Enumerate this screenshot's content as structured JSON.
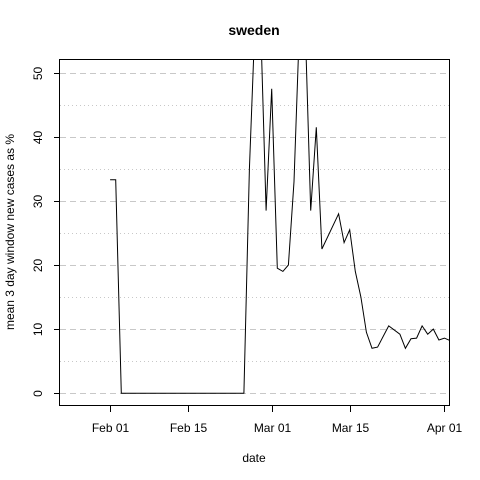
{
  "chart_data": {
    "type": "line",
    "title": "sweden",
    "xlabel": "date",
    "ylabel": "mean  3  day window new cases as %",
    "x_ticks": [
      "2020-02-01",
      "2020-02-15",
      "2020-03-01",
      "2020-03-15",
      "2020-04-01"
    ],
    "x_tick_labels": [
      "Feb 01",
      "Feb 15",
      "Mar 01",
      "Mar 15",
      "Apr 01"
    ],
    "y_ticks": [
      0,
      10,
      20,
      30,
      40,
      50
    ],
    "y_tick_labels": [
      "0",
      "10",
      "20",
      "30",
      "40",
      "50"
    ],
    "xlim": [
      "2020-01-23",
      "2020-04-02"
    ],
    "ylim": [
      -2,
      52
    ],
    "grid": true,
    "series": [
      {
        "points": [
          [
            "2020-02-01",
            33.3
          ],
          [
            "2020-02-02",
            33.3
          ],
          [
            "2020-02-03",
            0
          ],
          [
            "2020-02-25",
            0
          ],
          [
            "2020-02-26",
            35
          ],
          [
            "2020-02-27",
            58
          ],
          [
            "2020-02-28",
            58
          ],
          [
            "2020-02-29",
            28.5
          ],
          [
            "2020-03-01",
            47.5
          ],
          [
            "2020-03-02",
            19.5
          ],
          [
            "2020-03-03",
            19
          ],
          [
            "2020-03-04",
            20
          ],
          [
            "2020-03-05",
            33
          ],
          [
            "2020-03-06",
            58
          ],
          [
            "2020-03-07",
            58
          ],
          [
            "2020-03-08",
            28.5
          ],
          [
            "2020-03-09",
            41.5
          ],
          [
            "2020-03-10",
            22.5
          ],
          [
            "2020-03-13",
            28
          ],
          [
            "2020-03-14",
            23.5
          ],
          [
            "2020-03-15",
            25.5
          ],
          [
            "2020-03-16",
            19
          ],
          [
            "2020-03-17",
            15
          ],
          [
            "2020-03-18",
            9.5
          ],
          [
            "2020-03-19",
            7
          ],
          [
            "2020-03-20",
            7.2
          ],
          [
            "2020-03-22",
            10.5
          ],
          [
            "2020-03-24",
            9.2
          ],
          [
            "2020-03-25",
            7
          ],
          [
            "2020-03-26",
            8.5
          ],
          [
            "2020-03-27",
            8.6
          ],
          [
            "2020-03-28",
            10.5
          ],
          [
            "2020-03-29",
            9.2
          ],
          [
            "2020-03-30",
            10
          ],
          [
            "2020-03-31",
            8.3
          ],
          [
            "2020-04-01",
            8.6
          ],
          [
            "2020-04-02",
            8.2
          ]
        ]
      }
    ]
  }
}
